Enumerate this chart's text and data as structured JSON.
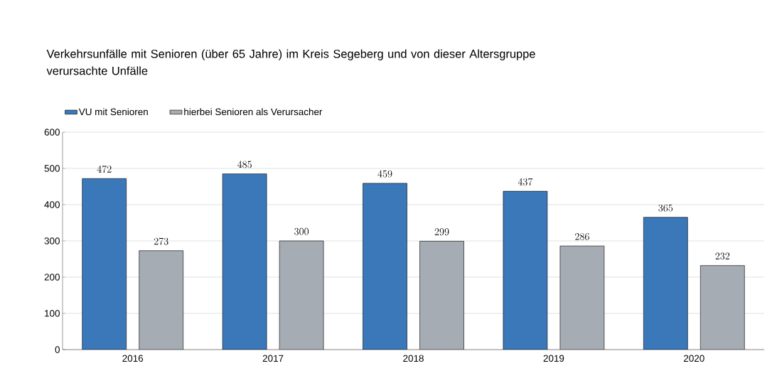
{
  "chart_data": {
    "type": "bar",
    "title": "Verkehrsunfälle mit  Senioren (über 65 Jahre) im Kreis Segeberg und von dieser Altersgruppe verursachte Unfälle",
    "categories": [
      "2016",
      "2017",
      "2018",
      "2019",
      "2020"
    ],
    "series": [
      {
        "name": "VU mit Senioren",
        "color": "#3a78b9",
        "values": [
          472,
          485,
          459,
          437,
          365
        ]
      },
      {
        "name": "hierbei Senioren als Verursacher",
        "color": "#a6acb4",
        "values": [
          273,
          300,
          299,
          286,
          232
        ]
      }
    ],
    "ylim": [
      0,
      600
    ],
    "yticks": [
      0,
      100,
      200,
      300,
      400,
      500,
      600
    ],
    "grid": "y",
    "legend": "top left",
    "data_labels": true
  }
}
